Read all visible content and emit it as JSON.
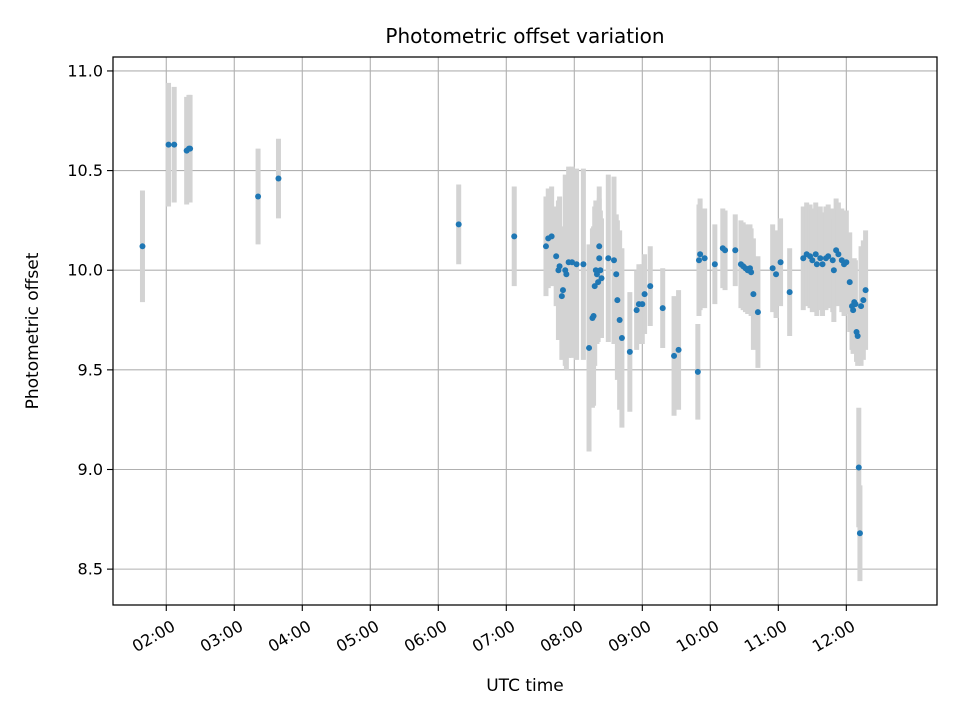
{
  "chart_data": {
    "type": "scatter",
    "title": "Photometric offset variation",
    "xlabel": "UTC time",
    "ylabel": "Photometric offset",
    "xlim": [
      "01:13",
      "13:20"
    ],
    "ylim": [
      8.32,
      11.07
    ],
    "grid": true,
    "x_ticks": [
      "02:00",
      "03:00",
      "04:00",
      "05:00",
      "06:00",
      "07:00",
      "08:00",
      "09:00",
      "10:00",
      "11:00",
      "12:00"
    ],
    "y_ticks": [
      "8.5",
      "9.0",
      "9.5",
      "10.0",
      "10.5",
      "11.0"
    ],
    "point_color": "#1f77b4",
    "errorbar_color": "#d3d3d3",
    "series": [
      {
        "x": [
          "01:39",
          "02:02",
          "02:07",
          "02:18",
          "02:20",
          "02:21",
          "03:21",
          "03:39",
          "06:18",
          "07:07",
          "07:35",
          "07:37",
          "07:40",
          "07:44",
          "07:46",
          "07:47",
          "07:49",
          "07:50",
          "07:52",
          "07:53",
          "07:55",
          "07:58",
          "08:02",
          "08:08",
          "08:13",
          "08:16",
          "08:17",
          "08:18",
          "08:19",
          "08:20",
          "08:21",
          "08:22",
          "08:22",
          "08:23",
          "08:24",
          "08:30",
          "08:35",
          "08:37",
          "08:38",
          "08:40",
          "08:42",
          "08:49",
          "08:55",
          "08:57",
          "09:00",
          "09:02",
          "09:07",
          "09:18",
          "09:28",
          "09:32",
          "09:49",
          "09:50",
          "09:51",
          "09:55",
          "10:04",
          "10:11",
          "10:13",
          "10:22",
          "10:27",
          "10:29",
          "10:31",
          "10:33",
          "10:35",
          "10:36",
          "10:38",
          "10:42",
          "10:55",
          "10:58",
          "11:02",
          "11:10",
          "11:22",
          "11:25",
          "11:28",
          "11:30",
          "11:33",
          "11:34",
          "11:37",
          "11:39",
          "11:42",
          "11:44",
          "11:48",
          "11:49",
          "11:51",
          "11:53",
          "11:56",
          "11:58",
          "12:00",
          "12:03",
          "12:05",
          "12:06",
          "12:07",
          "12:08",
          "12:09",
          "12:10",
          "12:11",
          "12:12",
          "12:13",
          "12:15",
          "12:17"
        ],
        "y": [
          10.12,
          10.63,
          10.63,
          10.6,
          10.61,
          10.61,
          10.37,
          10.46,
          10.23,
          10.17,
          10.12,
          10.16,
          10.17,
          10.07,
          10.0,
          10.02,
          9.87,
          9.9,
          10.0,
          9.98,
          10.04,
          10.04,
          10.03,
          10.03,
          9.61,
          9.76,
          9.77,
          9.92,
          10.0,
          9.98,
          9.94,
          10.06,
          10.12,
          10.0,
          9.96,
          10.06,
          10.05,
          9.98,
          9.85,
          9.75,
          9.66,
          9.59,
          9.8,
          9.83,
          9.83,
          9.88,
          9.92,
          9.81,
          9.57,
          9.6,
          9.49,
          10.05,
          10.08,
          10.06,
          10.03,
          10.11,
          10.1,
          10.1,
          10.03,
          10.02,
          10.01,
          10.0,
          10.01,
          9.99,
          9.88,
          9.79,
          10.01,
          9.98,
          10.04,
          9.89,
          10.06,
          10.08,
          10.07,
          10.05,
          10.08,
          10.03,
          10.06,
          10.03,
          10.06,
          10.07,
          10.05,
          10.0,
          10.1,
          10.08,
          10.05,
          10.03,
          10.04,
          9.94,
          9.82,
          9.8,
          9.84,
          9.83,
          9.69,
          9.67,
          9.01,
          8.68,
          9.82,
          9.85,
          9.9
        ],
        "err": [
          0.28,
          0.31,
          0.29,
          0.27,
          0.27,
          0.27,
          0.24,
          0.2,
          0.2,
          0.25,
          0.25,
          0.25,
          0.25,
          0.25,
          0.35,
          0.35,
          0.32,
          0.32,
          0.48,
          0.48,
          0.48,
          0.48,
          0.48,
          0.48,
          0.52,
          0.45,
          0.45,
          0.4,
          0.35,
          0.35,
          0.3,
          0.3,
          0.3,
          0.3,
          0.3,
          0.42,
          0.42,
          0.3,
          0.4,
          0.45,
          0.45,
          0.3,
          0.2,
          0.2,
          0.2,
          0.2,
          0.2,
          0.2,
          0.3,
          0.3,
          0.24,
          0.28,
          0.28,
          0.25,
          0.2,
          0.2,
          0.2,
          0.18,
          0.22,
          0.22,
          0.22,
          0.22,
          0.22,
          0.22,
          0.28,
          0.28,
          0.22,
          0.22,
          0.22,
          0.22,
          0.26,
          0.26,
          0.26,
          0.26,
          0.26,
          0.26,
          0.26,
          0.26,
          0.26,
          0.26,
          0.26,
          0.26,
          0.26,
          0.26,
          0.26,
          0.26,
          0.26,
          0.25,
          0.22,
          0.22,
          0.22,
          0.22,
          0.15,
          0.15,
          0.3,
          0.24,
          0.3,
          0.3,
          0.3
        ]
      }
    ]
  }
}
